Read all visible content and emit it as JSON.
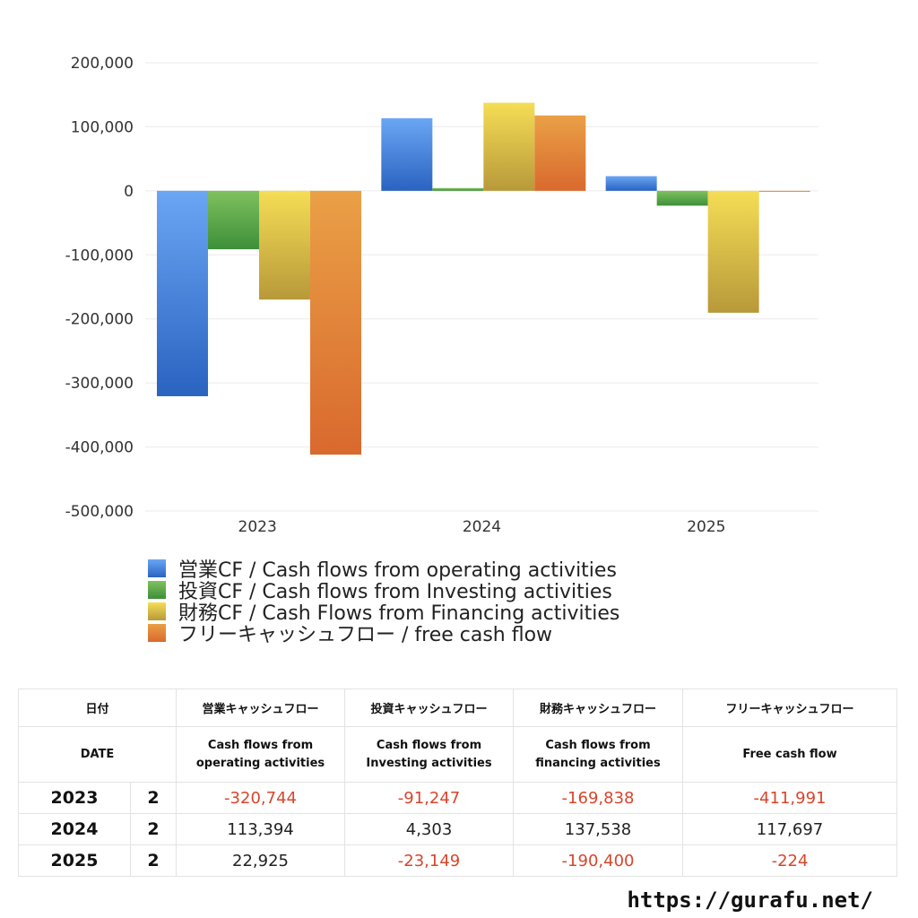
{
  "chart_data": {
    "type": "bar",
    "categories": [
      "2023",
      "2024",
      "2025"
    ],
    "ylim": [
      -500000,
      200000
    ],
    "yticks": [
      200000,
      100000,
      0,
      -100000,
      -200000,
      -300000,
      -400000,
      -500000
    ],
    "ytick_labels": [
      "200,000",
      "100,000",
      "0",
      "-100,000",
      "-200,000",
      "-300,000",
      "-400,000",
      "-500,000"
    ],
    "grid": true,
    "legend_position": "bottom",
    "series": [
      {
        "name": "営業CF / Cash flows from operating activities",
        "values": [
          -320744,
          113394,
          22925
        ],
        "color_top": "#6aa6f4",
        "color_bottom": "#2a63c0"
      },
      {
        "name": "投資CF / Cash flows from Investing activities",
        "values": [
          -91247,
          4303,
          -23149
        ],
        "color_top": "#7fc15e",
        "color_bottom": "#3e8f3a"
      },
      {
        "name": "財務CF / Cash Flows from Financing activities",
        "values": [
          -169838,
          137538,
          -190400
        ],
        "color_top": "#f5dd55",
        "color_bottom": "#b8993a"
      },
      {
        "name": "フリーキャッシュフロー / free cash flow",
        "values": [
          -411991,
          117697,
          -224
        ],
        "color_top": "#eaa046",
        "color_bottom": "#d9692e"
      }
    ]
  },
  "table": {
    "header_ja": [
      "日付",
      "営業キャッシュフロー",
      "投資キャッシュフロー",
      "財務キャッシュフロー",
      "フリーキャッシュフロー"
    ],
    "header_en": [
      [
        "DATE"
      ],
      [
        "Cash flows from",
        "operating activities"
      ],
      [
        "Cash flows from",
        "Investing activities"
      ],
      [
        "Cash flows from",
        "financing activities"
      ],
      [
        "Free cash flow"
      ]
    ],
    "rows": [
      {
        "date": "2023",
        "quarter": "2",
        "cells": [
          "-320,744",
          "-91,247",
          "-169,838",
          "-411,991"
        ],
        "negative": [
          true,
          true,
          true,
          true
        ]
      },
      {
        "date": "2024",
        "quarter": "2",
        "cells": [
          "113,394",
          "4,303",
          "137,538",
          "117,697"
        ],
        "negative": [
          false,
          false,
          false,
          false
        ]
      },
      {
        "date": "2025",
        "quarter": "2",
        "cells": [
          "22,925",
          "-23,149",
          "-190,400",
          "-224"
        ],
        "negative": [
          false,
          true,
          true,
          true
        ]
      }
    ]
  },
  "footer": {
    "url": "https://gurafu.net/"
  }
}
